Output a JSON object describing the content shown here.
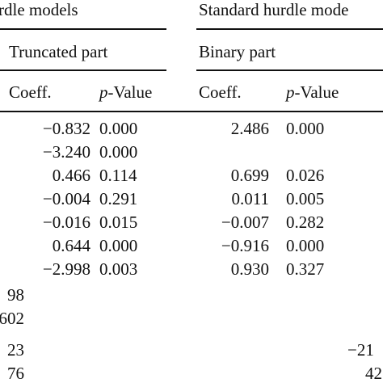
{
  "headers": {
    "group_left": "rdle models",
    "group_right": "Standard hurdle mode",
    "part_left": "Truncated part",
    "part_right": "Binary part",
    "coeff_label": "Coeff.",
    "pvalue_p": "p",
    "pvalue_rest": "-Value"
  },
  "rows": [
    {
      "c1": "−0.832",
      "p1": "0.000",
      "c2": "2.486",
      "p2": "0.000"
    },
    {
      "c1": "−3.240",
      "p1": "0.000",
      "c2": "",
      "p2": ""
    },
    {
      "c1": "0.466",
      "p1": "0.114",
      "c2": "0.699",
      "p2": "0.026"
    },
    {
      "c1": "−0.004",
      "p1": "0.291",
      "c2": "0.011",
      "p2": "0.005"
    },
    {
      "c1": "−0.016",
      "p1": "0.015",
      "c2": "−0.007",
      "p2": "0.282"
    },
    {
      "c1": "0.644",
      "p1": "0.000",
      "c2": "−0.916",
      "p2": "0.000"
    },
    {
      "c1": "−2.998",
      "p1": "0.003",
      "c2": "0.930",
      "p2": "0.327"
    }
  ],
  "bottom": {
    "left": [
      "98",
      "602",
      "23",
      "76"
    ],
    "right": [
      "−21",
      "42"
    ]
  }
}
